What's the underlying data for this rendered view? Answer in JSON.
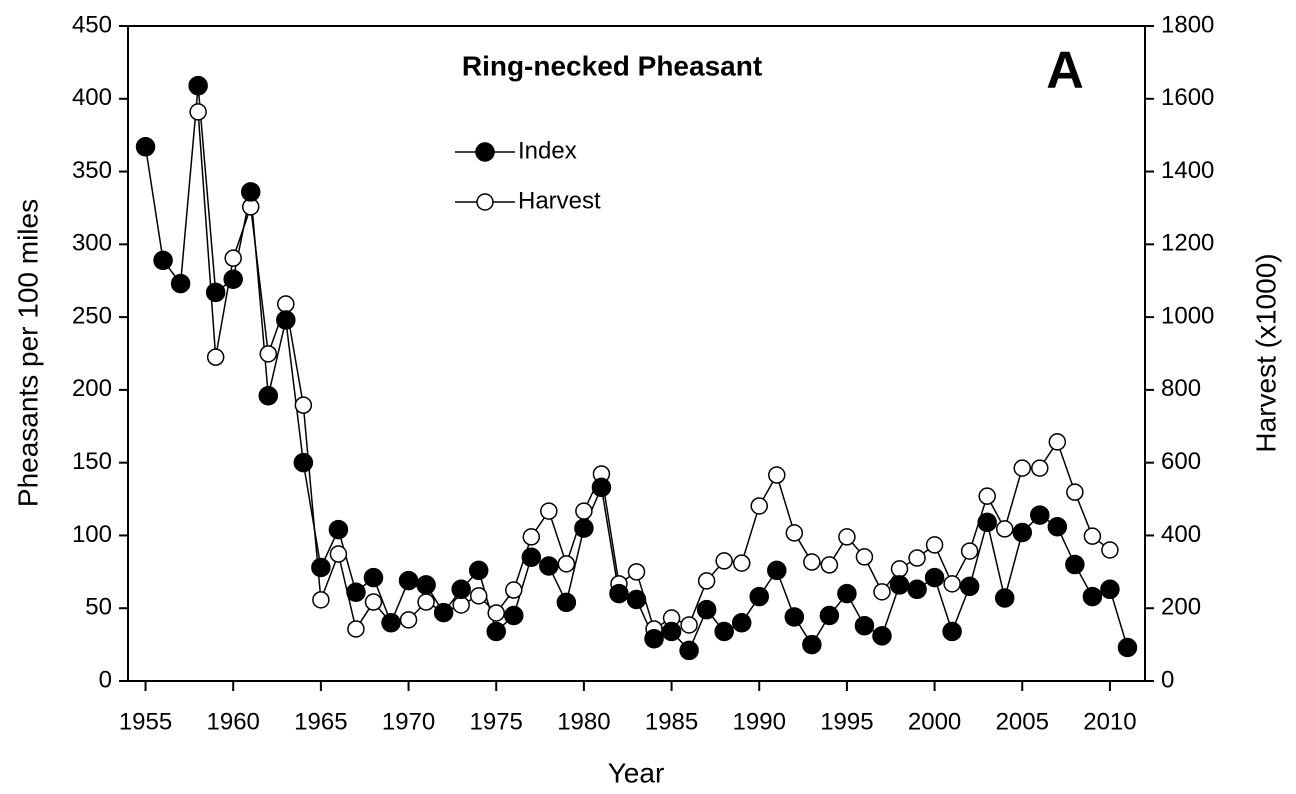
{
  "chart_data": {
    "type": "line",
    "title": "Ring-necked Pheasant",
    "annotation": "A",
    "xlabel": "Year",
    "ylabel": "Pheasants per 100 miles",
    "y2label": "Harvest (x1000)",
    "x": [
      1955,
      1956,
      1957,
      1958,
      1959,
      1960,
      1961,
      1962,
      1963,
      1964,
      1965,
      1966,
      1967,
      1968,
      1969,
      1970,
      1971,
      1972,
      1973,
      1974,
      1975,
      1976,
      1977,
      1978,
      1979,
      1980,
      1981,
      1982,
      1983,
      1984,
      1985,
      1986,
      1987,
      1988,
      1989,
      1990,
      1991,
      1992,
      1993,
      1994,
      1995,
      1996,
      1997,
      1998,
      1999,
      2000,
      2001,
      2002,
      2003,
      2004,
      2005,
      2006,
      2007,
      2008,
      2009,
      2010,
      2011
    ],
    "series": [
      {
        "name": "Harvest",
        "color": "#000000",
        "marker": "open",
        "axis": "y2",
        "values": [
          null,
          null,
          null,
          1564,
          890,
          1162,
          1303,
          899,
          1036,
          758,
          223,
          349,
          143,
          217,
          159,
          168,
          217,
          190,
          209,
          234,
          187,
          250,
          396,
          467,
          322,
          467,
          569,
          267,
          300,
          143,
          173,
          154,
          275,
          330,
          324,
          481,
          566,
          407,
          327,
          319,
          396,
          341,
          245,
          308,
          338,
          374,
          267,
          357,
          508,
          418,
          585,
          585,
          657,
          519,
          398,
          360,
          null
        ]
      },
      {
        "name": "Index",
        "color": "#000000",
        "marker": "filled",
        "values": [
          367,
          289,
          273,
          409,
          267,
          276,
          336,
          196,
          248,
          150,
          78,
          104,
          61,
          71,
          40,
          69,
          66,
          47,
          63,
          76,
          34,
          45,
          85,
          79,
          54,
          105,
          133,
          60,
          56,
          29,
          34,
          21,
          49,
          34,
          40,
          58,
          76,
          44,
          25,
          45,
          60,
          38,
          31,
          66,
          63,
          71,
          34,
          65,
          109,
          57,
          102,
          114,
          106,
          80,
          58,
          63,
          23
        ]
      }
    ],
    "xlim": [
      1954,
      2012
    ],
    "xticks": [
      1955,
      1960,
      1965,
      1970,
      1975,
      1980,
      1985,
      1990,
      1995,
      2000,
      2005,
      2010
    ],
    "ylim": [
      0,
      450
    ],
    "yticks": [
      0,
      50,
      100,
      150,
      200,
      250,
      300,
      350,
      400,
      450
    ],
    "y2lim": [
      0,
      1800
    ],
    "y2ticks": [
      0,
      200,
      400,
      600,
      800,
      1000,
      1200,
      1400,
      1600,
      1800
    ],
    "grid": false
  }
}
